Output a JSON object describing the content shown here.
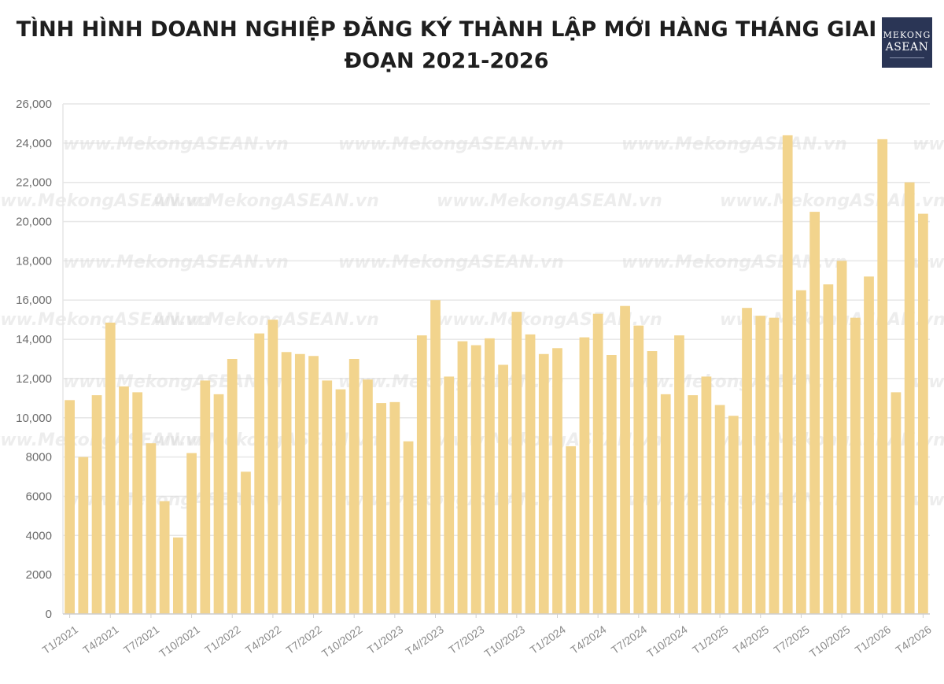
{
  "header": {
    "title": "TÌNH HÌNH DOANH NGHIỆP ĐĂNG KÝ THÀNH LẬP MỚI HÀNG THÁNG GIAI ĐOẠN 2021-2026",
    "logo_line1": "MEKONG",
    "logo_line2": "ASEAN"
  },
  "watermark": "www.MekongASEAN.vn",
  "colors": {
    "bar": "#f2d48d",
    "grid": "#e6e6e6",
    "logo_bg": "#2a3555"
  },
  "chart_data": {
    "type": "bar",
    "title": "TÌNH HÌNH DOANH NGHIỆP ĐĂNG KÝ THÀNH LẬP MỚI HÀNG THÁNG GIAI ĐOẠN 2021-2026",
    "xlabel": "",
    "ylabel": "",
    "ylim": [
      0,
      26000
    ],
    "yticks": [
      0,
      2000,
      4000,
      6000,
      8000,
      10000,
      12000,
      14000,
      16000,
      18000,
      20000,
      22000,
      24000,
      26000
    ],
    "ytick_labels": [
      "0",
      "2000",
      "4000",
      "6000",
      "8000",
      "10,000",
      "12,000",
      "14,000",
      "16,000",
      "18,000",
      "20,000",
      "22,000",
      "24,000",
      "26,000"
    ],
    "grid": true,
    "legend": "none",
    "categories": [
      "T1/2021",
      "T2/2021",
      "T3/2021",
      "T4/2021",
      "T5/2021",
      "T6/2021",
      "T7/2021",
      "T8/2021",
      "T9/2021",
      "T10/2021",
      "T11/2021",
      "T12/2021",
      "T1/2022",
      "T2/2022",
      "T3/2022",
      "T4/2022",
      "T5/2022",
      "T6/2022",
      "T7/2022",
      "T8/2022",
      "T9/2022",
      "T10/2022",
      "T11/2022",
      "T12/2022",
      "T1/2023",
      "T2/2023",
      "T3/2023",
      "T4/2023",
      "T5/2023",
      "T6/2023",
      "T7/2023",
      "T8/2023",
      "T9/2023",
      "T10/2023",
      "T11/2023",
      "T12/2023",
      "T1/2024",
      "T2/2024",
      "T3/2024",
      "T4/2024",
      "T5/2024",
      "T6/2024",
      "T7/2024",
      "T8/2024",
      "T9/2024",
      "T10/2024",
      "T11/2024",
      "T12/2024",
      "T1/2025",
      "T2/2025",
      "T3/2025",
      "T4/2025",
      "T5/2025",
      "T6/2025",
      "T7/2025",
      "T8/2025",
      "T9/2025",
      "T10/2025",
      "T11/2025",
      "T12/2025",
      "T1/2026",
      "T2/2026",
      "T3/2026",
      "T4/2026"
    ],
    "tick_labels": [
      {
        "index": 0,
        "label": "T1/2021"
      },
      {
        "index": 3,
        "label": "T4/2021"
      },
      {
        "index": 6,
        "label": "T7/2021"
      },
      {
        "index": 9,
        "label": "T10/2021"
      },
      {
        "index": 12,
        "label": "T1/2022"
      },
      {
        "index": 15,
        "label": "T4/2022"
      },
      {
        "index": 18,
        "label": "T7/2022"
      },
      {
        "index": 21,
        "label": "T10/2022"
      },
      {
        "index": 24,
        "label": "T1/2023"
      },
      {
        "index": 27,
        "label": "T4//2023"
      },
      {
        "index": 30,
        "label": "T7/2023"
      },
      {
        "index": 33,
        "label": "T10/2023"
      },
      {
        "index": 36,
        "label": "T1/2024"
      },
      {
        "index": 39,
        "label": "T4/2024"
      },
      {
        "index": 42,
        "label": "T7/2024"
      },
      {
        "index": 45,
        "label": "T10/2024"
      },
      {
        "index": 48,
        "label": "T1/2025"
      },
      {
        "index": 51,
        "label": "T4/2025"
      },
      {
        "index": 54,
        "label": "T7/2025"
      },
      {
        "index": 57,
        "label": "T10/2025"
      },
      {
        "index": 60,
        "label": "T1/2026"
      },
      {
        "index": 63,
        "label": "T4/2026"
      }
    ],
    "values": [
      10900,
      8000,
      11150,
      14850,
      11600,
      11300,
      8700,
      5750,
      3900,
      8200,
      11900,
      11200,
      13000,
      7250,
      14300,
      15000,
      13350,
      13250,
      13150,
      11900,
      11450,
      13000,
      11950,
      10750,
      10800,
      8800,
      14200,
      16000,
      12100,
      13900,
      13700,
      14050,
      12700,
      15400,
      14250,
      13250,
      13550,
      8550,
      14100,
      15300,
      13200,
      15700,
      14700,
      13400,
      11200,
      14200,
      11150,
      12100,
      10650,
      10100,
      15600,
      15200,
      15100,
      24400,
      16500,
      20500,
      16800,
      18000,
      15100,
      17200,
      24200,
      11300,
      22000,
      20400
    ]
  }
}
